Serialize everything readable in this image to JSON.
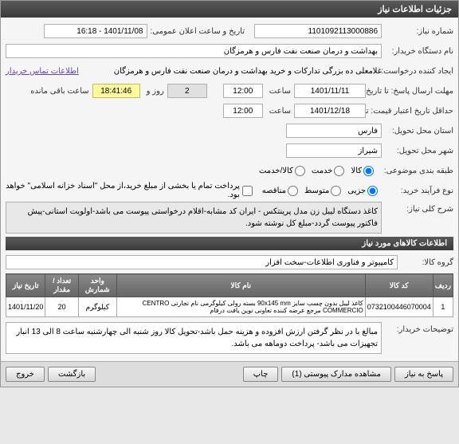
{
  "header": {
    "title": "جزئیات اطلاعات نیاز"
  },
  "fields": {
    "need_no_lbl": "شماره نیاز:",
    "need_no": "1101092113000886",
    "announce_lbl": "تاریخ و ساعت اعلان عمومی:",
    "announce": "1401/11/08 - 16:18",
    "buyer_name_lbl": "نام دستگاه خریدار:",
    "buyer_name": "بهداشت و درمان صنعت نفت فارس و هرمزگان",
    "creator_lbl": "ایجاد کننده درخواست:",
    "creator": "غلامعلی ده بزرگی تدارکات و خرید بهداشت و درمان صنعت نفت فارس و هرمزگان",
    "contact_link": "اطلاعات تماس خریدار",
    "deadline_lbl": "مهلت ارسال پاسخ: تا تاریخ:",
    "deadline_date": "1401/11/11",
    "deadline_time_lbl": "ساعت",
    "deadline_time": "12:00",
    "days_remain": "2",
    "days_lbl": "روز و",
    "hours_remain": "18:41:46",
    "hours_lbl": "ساعت باقی مانده",
    "validity_lbl": "حداقل تاریخ اعتبار قیمت: تا",
    "validity_date": "1401/12/18",
    "validity_time_lbl": "ساعت",
    "validity_time": "12:00",
    "province_lbl": "استان محل تحویل:",
    "province": "فارس",
    "city_lbl": "شهر محل تحویل:",
    "city": "شیراز",
    "budget_lbl": "طبقه بندی موضوعی:",
    "budget_opts": {
      "goods": "کالا",
      "service": "خدمت",
      "goods_service": "کالا/خدمت"
    },
    "buy_process_lbl": "نوع فرآیند خرید:",
    "buy_process_opts": {
      "low": "جزیی",
      "medium": "متوسط",
      "formal": "مناقصه"
    },
    "partial_pay_lbl": "پرداخت تمام یا بخشی از مبلغ خرید،از محل \"اسناد خزانه اسلامی\" خواهد بود.",
    "main_key_lbl": "شرح کلی نیاز:",
    "main_key": "کاغذ دستگاه لیبل زن مدل پرینتکس - ایران کد مشابه-اقلام درخواستی پیوست می باشد-اولویت استانی-پیش فاکتور پیوست گردد-مبلغ کل نوشته شود.",
    "goods_hdr": "اطلاعات کالاهای مورد نیاز",
    "group_lbl": "گروه کالا:",
    "group": "کامپیوتر و فناوری اطلاعات-سخت افزار"
  },
  "table": {
    "cols": [
      "ردیف",
      "کد کالا",
      "نام کالا",
      "واحد شمارش",
      "تعداد / مقدار",
      "تاریخ نیاز"
    ],
    "rows": [
      [
        "1",
        "0732100446070004",
        "کاغذ لیبل بدون چسب سایز 90x145 mm بسته رولی کیلوگرمی نام تجارتی CENTRO COMMERCIO مرجع عرضه کننده تعاونی نوین یافت درفام",
        "کیلوگرم",
        "20",
        "1401/11/20"
      ]
    ]
  },
  "buyer_note_lbl": "توضیحات خریدار:",
  "buyer_note": "مبالغ با در نظر گرفتن ارزش افزوده و هزینه حمل باشد-تحویل کالا روز شنبه الی چهارشنبه ساعت 8 الی 13 انبار تجهیزات می باشد- پرداخت دوماهه می باشد.",
  "footer": {
    "reply": "پاسخ به نیاز",
    "view_docs": "مشاهده مدارک پیوستی (1)",
    "print": "چاپ",
    "back": "بازگشت",
    "exit": "خروج"
  }
}
